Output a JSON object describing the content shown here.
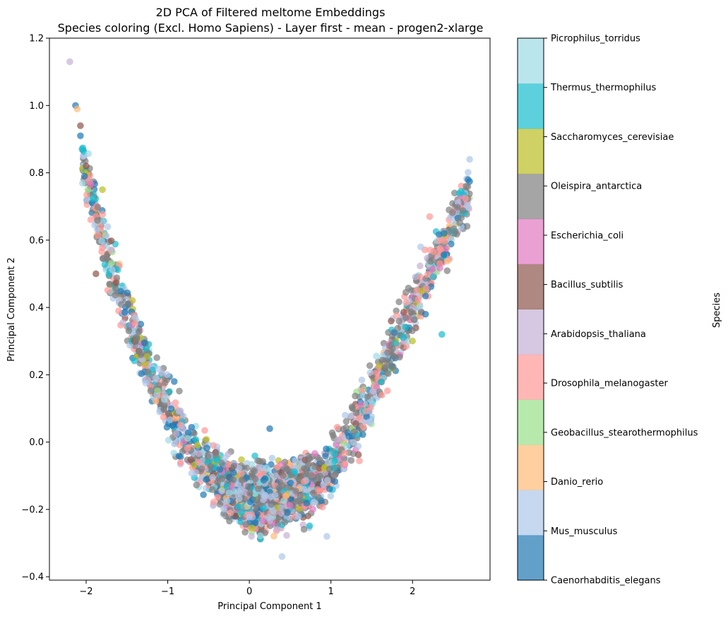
{
  "chart_data": {
    "type": "scatter",
    "title": "2D PCA of Filtered meltome Embeddings",
    "subtitle": "Species coloring (Excl. Homo Sapiens) - Layer first - mean - progen2-xlarge",
    "xlabel": "Principal Component 1",
    "ylabel": "Principal Component 2",
    "xlim": [
      -2.45,
      2.95
    ],
    "ylim": [
      -0.41,
      1.2
    ],
    "xticks": [
      -2,
      -1,
      0,
      1,
      2
    ],
    "xtick_labels": [
      "−2",
      "−1",
      "0",
      "1",
      "2"
    ],
    "yticks": [
      -0.4,
      -0.2,
      0.0,
      0.2,
      0.4,
      0.6,
      0.8,
      1.0,
      1.2
    ],
    "ytick_labels": [
      "−0.4",
      "−0.2",
      "0.0",
      "0.2",
      "0.4",
      "0.6",
      "0.8",
      "1.0",
      "1.2"
    ],
    "grid": false,
    "colorbar": {
      "label": "Species",
      "categories": [
        "Caenorhabditis_elegans",
        "Mus_musculus",
        "Danio_rerio",
        "Geobacillus_stearothermophilus",
        "Drosophila_melanogaster",
        "Arabidopsis_thaliana",
        "Bacillus_subtilis",
        "Escherichia_coli",
        "Oleispira_antarctica",
        "Saccharomyces_cerevisiae",
        "Thermus_thermophilus",
        "Picrophilus_torridus"
      ],
      "colors": [
        "#1f77b4",
        "#aec7e8",
        "#ffbb78",
        "#98df8a",
        "#ff9896",
        "#c5b0d5",
        "#8c564b",
        "#e377c2",
        "#7f7f7f",
        "#bcbd22",
        "#17becf",
        "#9edae5"
      ]
    },
    "series_points": [
      {
        "species": "Arabidopsis_thaliana",
        "x": -2.2,
        "y": 1.13
      },
      {
        "species": "Caenorhabditis_elegans",
        "x": -2.13,
        "y": 1.0
      },
      {
        "species": "Danio_rerio",
        "x": -2.11,
        "y": 0.99
      },
      {
        "species": "Bacillus_subtilis",
        "x": -2.07,
        "y": 0.94
      },
      {
        "species": "Caenorhabditis_elegans",
        "x": -2.07,
        "y": 0.91
      },
      {
        "species": "Thermus_thermophilus",
        "x": -2.05,
        "y": 0.87
      },
      {
        "species": "Bacillus_subtilis",
        "x": -2.0,
        "y": 0.82
      },
      {
        "species": "Caenorhabditis_elegans",
        "x": -2.02,
        "y": 0.79
      },
      {
        "species": "Mus_musculus",
        "x": 2.7,
        "y": 0.84
      },
      {
        "species": "Caenorhabditis_elegans",
        "x": 2.68,
        "y": 0.78
      },
      {
        "species": "Caenorhabditis_elegans",
        "x": 0.25,
        "y": 0.04
      },
      {
        "species": "Mus_musculus",
        "x": 0.4,
        "y": -0.34
      },
      {
        "species": "Mus_musculus",
        "x": 0.95,
        "y": -0.28
      },
      {
        "species": "Danio_rerio",
        "x": 0.45,
        "y": -0.16
      },
      {
        "species": "Caenorhabditis_elegans",
        "x": -0.92,
        "y": 0.18
      },
      {
        "species": "Caenorhabditis_elegans",
        "x": 2.16,
        "y": 0.38
      },
      {
        "species": "Thermus_thermophilus",
        "x": 2.36,
        "y": 0.32
      },
      {
        "species": "Drosophila_melanogaster",
        "x": 2.21,
        "y": 0.67
      },
      {
        "species": "Mus_musculus",
        "x": 2.1,
        "y": 0.58
      },
      {
        "species": "Bacillus_subtilis",
        "x": -1.88,
        "y": 0.5
      },
      {
        "species": "Saccharomyces_cerevisiae",
        "x": -1.8,
        "y": 0.75
      }
    ],
    "density_model": {
      "description": "Dense cloud of several thousand points along a U-shaped band; estimated centerline",
      "centerline_x": [
        -2.1,
        -1.8,
        -1.5,
        -1.2,
        -0.9,
        -0.6,
        -0.3,
        0.0,
        0.3,
        0.6,
        0.9,
        1.2,
        1.5,
        1.8,
        2.1,
        2.4,
        2.7
      ],
      "centerline_y": [
        0.9,
        0.6,
        0.38,
        0.2,
        0.05,
        -0.06,
        -0.13,
        -0.17,
        -0.17,
        -0.14,
        -0.1,
        0.0,
        0.14,
        0.3,
        0.45,
        0.6,
        0.75
      ],
      "approx_point_count": 3000
    }
  }
}
